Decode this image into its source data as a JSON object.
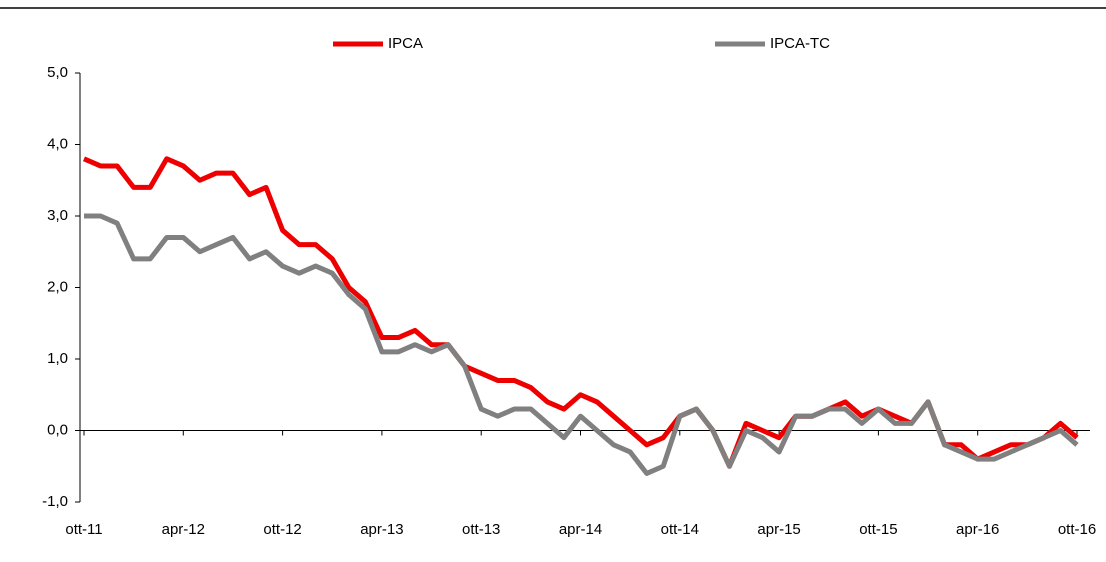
{
  "chart_data": {
    "type": "line",
    "categories": [
      "ott-11",
      null,
      null,
      null,
      null,
      null,
      "apr-12",
      null,
      null,
      null,
      null,
      null,
      "ott-12",
      null,
      null,
      null,
      null,
      null,
      "apr-13",
      null,
      null,
      null,
      null,
      null,
      "ott-13",
      null,
      null,
      null,
      null,
      null,
      "apr-14",
      null,
      null,
      null,
      null,
      null,
      "ott-14",
      null,
      null,
      null,
      null,
      null,
      "apr-15",
      null,
      null,
      null,
      null,
      null,
      "ott-15",
      null,
      null,
      null,
      null,
      null,
      "apr-16",
      null,
      null,
      null,
      null,
      null,
      "ott-16"
    ],
    "series": [
      {
        "name": "IPCA",
        "color": "#ee0000",
        "values": [
          3.8,
          3.7,
          3.7,
          3.4,
          3.4,
          3.8,
          3.7,
          3.5,
          3.6,
          3.6,
          3.3,
          3.4,
          2.8,
          2.6,
          2.6,
          2.4,
          2.0,
          1.8,
          1.3,
          1.3,
          1.4,
          1.2,
          1.2,
          0.9,
          0.8,
          0.7,
          0.7,
          0.6,
          0.4,
          0.3,
          0.5,
          0.4,
          0.2,
          0.0,
          -0.2,
          -0.1,
          0.2,
          0.3,
          0.0,
          -0.5,
          0.1,
          0.0,
          -0.1,
          0.2,
          0.2,
          0.3,
          0.4,
          0.2,
          0.3,
          0.2,
          0.1,
          0.4,
          -0.2,
          -0.2,
          -0.4,
          -0.3,
          -0.2,
          -0.2,
          -0.1,
          0.1,
          -0.1
        ]
      },
      {
        "name": "IPCA-TC",
        "color": "#808080",
        "values": [
          3.0,
          3.0,
          2.9,
          2.4,
          2.4,
          2.7,
          2.7,
          2.5,
          2.6,
          2.7,
          2.4,
          2.5,
          2.3,
          2.2,
          2.3,
          2.2,
          1.9,
          1.7,
          1.1,
          1.1,
          1.2,
          1.1,
          1.2,
          0.9,
          0.3,
          0.2,
          0.3,
          0.3,
          0.1,
          -0.1,
          0.2,
          0.0,
          -0.2,
          -0.3,
          -0.6,
          -0.5,
          0.2,
          0.3,
          0.0,
          -0.5,
          0.0,
          -0.1,
          -0.3,
          0.2,
          0.2,
          0.3,
          0.3,
          0.1,
          0.3,
          0.1,
          0.1,
          0.4,
          -0.2,
          -0.3,
          -0.4,
          -0.4,
          -0.3,
          -0.2,
          -0.1,
          0.0,
          -0.2
        ]
      }
    ],
    "ylim": [
      -1,
      5
    ],
    "yticks": [
      {
        "value": -1,
        "label": "-1,0"
      },
      {
        "value": 0,
        "label": "0,0"
      },
      {
        "value": 1,
        "label": "1,0"
      },
      {
        "value": 2,
        "label": "2,0"
      },
      {
        "value": 3,
        "label": "3,0"
      },
      {
        "value": 4,
        "label": "4,0"
      },
      {
        "value": 5,
        "label": "5,0"
      }
    ],
    "legend": "top"
  }
}
